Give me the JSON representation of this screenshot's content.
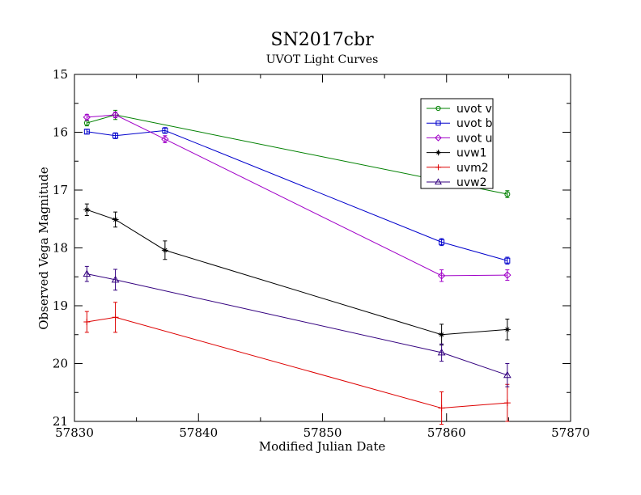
{
  "chart_data": {
    "type": "line",
    "title": "SN2017cbr",
    "subtitle": "UVOT Light Curves",
    "xlabel": "Modified Julian Date",
    "ylabel": "Observed Vega Magnitude",
    "xlim": [
      57830,
      57870
    ],
    "ylim": [
      15,
      21
    ],
    "y_inverted": true,
    "x_ticks": [
      57830,
      57840,
      57850,
      57860,
      57870
    ],
    "y_ticks": [
      15,
      16,
      17,
      18,
      19,
      20,
      21
    ],
    "grid": false,
    "legend_position": "top-right",
    "series": [
      {
        "name": "uvot v",
        "color": "#008000",
        "marker": "circle",
        "points": [
          {
            "x": 57831.0,
            "y": 15.84,
            "err": 0.05
          },
          {
            "x": 57833.3,
            "y": 15.7,
            "err": 0.08
          },
          {
            "x": 57864.9,
            "y": 17.07,
            "err": 0.06
          }
        ]
      },
      {
        "name": "uvot b",
        "color": "#0000cc",
        "marker": "square",
        "points": [
          {
            "x": 57831.0,
            "y": 15.99,
            "err": 0.04
          },
          {
            "x": 57833.3,
            "y": 16.06,
            "err": 0.05
          },
          {
            "x": 57837.3,
            "y": 15.97,
            "err": 0.05
          },
          {
            "x": 57859.6,
            "y": 17.9,
            "err": 0.06
          },
          {
            "x": 57864.9,
            "y": 18.22,
            "err": 0.06
          }
        ]
      },
      {
        "name": "uvot u",
        "color": "#a000c8",
        "marker": "diamond",
        "points": [
          {
            "x": 57831.0,
            "y": 15.74,
            "err": 0.05
          },
          {
            "x": 57833.3,
            "y": 15.7,
            "err": 0.05
          },
          {
            "x": 57837.3,
            "y": 16.12,
            "err": 0.06
          },
          {
            "x": 57859.6,
            "y": 18.48,
            "err": 0.1
          },
          {
            "x": 57864.9,
            "y": 18.47,
            "err": 0.09
          }
        ]
      },
      {
        "name": "uvw1",
        "color": "#000000",
        "marker": "star",
        "points": [
          {
            "x": 57831.0,
            "y": 17.34,
            "err": 0.1
          },
          {
            "x": 57833.3,
            "y": 17.51,
            "err": 0.13
          },
          {
            "x": 57837.3,
            "y": 18.04,
            "err": 0.16
          },
          {
            "x": 57859.6,
            "y": 19.5,
            "err": 0.18
          },
          {
            "x": 57864.9,
            "y": 19.41,
            "err": 0.18
          }
        ]
      },
      {
        "name": "uvm2",
        "color": "#dd0000",
        "marker": "plus",
        "points": [
          {
            "x": 57831.0,
            "y": 19.28,
            "err": 0.18
          },
          {
            "x": 57833.3,
            "y": 19.2,
            "err": 0.26
          },
          {
            "x": 57859.6,
            "y": 20.77,
            "err": 0.28
          },
          {
            "x": 57864.9,
            "y": 20.68,
            "err": 0.32
          }
        ]
      },
      {
        "name": "uvw2",
        "color": "#33007f",
        "marker": "triangle",
        "points": [
          {
            "x": 57831.0,
            "y": 18.45,
            "err": 0.13
          },
          {
            "x": 57833.3,
            "y": 18.55,
            "err": 0.18
          },
          {
            "x": 57859.6,
            "y": 19.81,
            "err": 0.15
          },
          {
            "x": 57864.9,
            "y": 20.2,
            "err": 0.2
          }
        ]
      }
    ]
  }
}
